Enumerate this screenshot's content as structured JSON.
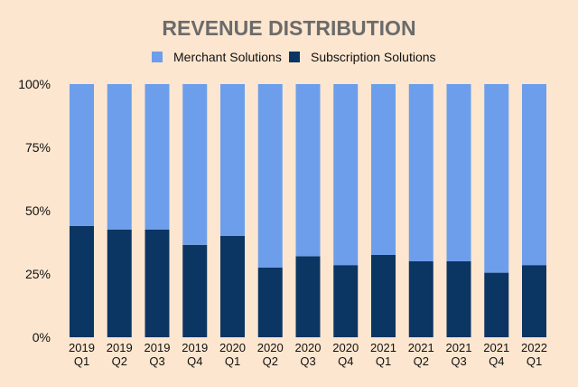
{
  "chart_data": {
    "type": "bar",
    "stacked": true,
    "title": "REVENUE DISTRIBUTION",
    "categories": [
      [
        "2019",
        "Q1"
      ],
      [
        "2019",
        "Q2"
      ],
      [
        "2019",
        "Q3"
      ],
      [
        "2019",
        "Q4"
      ],
      [
        "2020",
        "Q1"
      ],
      [
        "2020",
        "Q2"
      ],
      [
        "2020",
        "Q3"
      ],
      [
        "2020",
        "Q4"
      ],
      [
        "2021",
        "Q1"
      ],
      [
        "2021",
        "Q2"
      ],
      [
        "2021",
        "Q3"
      ],
      [
        "2021",
        "Q4"
      ],
      [
        "2022",
        "Q1"
      ]
    ],
    "series": [
      {
        "name": "Subscription Solutions",
        "color": "#0b3563",
        "values": [
          44,
          42.5,
          42.5,
          36.5,
          40,
          27.5,
          32,
          28.5,
          32.5,
          30,
          30,
          25.5,
          28.5
        ]
      },
      {
        "name": "Merchant Solutions",
        "color": "#6d9eeb",
        "values": [
          56,
          57.5,
          57.5,
          63.5,
          60,
          72.5,
          68,
          71.5,
          67.5,
          70,
          70,
          74.5,
          71.5
        ]
      }
    ],
    "legend_order": [
      "Merchant Solutions",
      "Subscription Solutions"
    ],
    "legend_position": "top-center",
    "ylim": [
      0,
      100
    ],
    "yticks": [
      "0%",
      "25%",
      "50%",
      "75%",
      "100%"
    ],
    "xlabel": "",
    "ylabel": "",
    "grid": false
  }
}
